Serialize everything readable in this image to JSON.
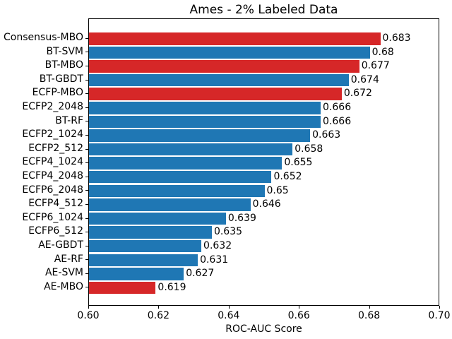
{
  "title": "Ames - 2% Labeled Data",
  "chart_data": {
    "type": "bar",
    "orientation": "horizontal",
    "title": "Ames - 2% Labeled Data",
    "xlabel": "ROC-AUC Score",
    "ylabel": "",
    "xlim": [
      0.6,
      0.7
    ],
    "xticks": [
      {
        "value": 0.6,
        "label": "0.60"
      },
      {
        "value": 0.62,
        "label": "0.62"
      },
      {
        "value": 0.64,
        "label": "0.64"
      },
      {
        "value": 0.66,
        "label": "0.66"
      },
      {
        "value": 0.68,
        "label": "0.68"
      },
      {
        "value": 0.7,
        "label": "0.70"
      }
    ],
    "grid": false,
    "legend": null,
    "colors": {
      "highlight": "#d62728",
      "default": "#1f77b4",
      "spine": "#000000",
      "text": "#000000"
    },
    "bars": [
      {
        "label": "Consensus-MBO",
        "value": 0.683,
        "value_label": "0.683",
        "color": "highlight"
      },
      {
        "label": "BT-SVM",
        "value": 0.68,
        "value_label": "0.68",
        "color": "default"
      },
      {
        "label": "BT-MBO",
        "value": 0.677,
        "value_label": "0.677",
        "color": "highlight"
      },
      {
        "label": "BT-GBDT",
        "value": 0.674,
        "value_label": "0.674",
        "color": "default"
      },
      {
        "label": "ECFP-MBO",
        "value": 0.672,
        "value_label": "0.672",
        "color": "highlight"
      },
      {
        "label": "ECFP2_2048",
        "value": 0.666,
        "value_label": "0.666",
        "color": "default"
      },
      {
        "label": "BT-RF",
        "value": 0.666,
        "value_label": "0.666",
        "color": "default"
      },
      {
        "label": "ECFP2_1024",
        "value": 0.663,
        "value_label": "0.663",
        "color": "default"
      },
      {
        "label": "ECFP2_512",
        "value": 0.658,
        "value_label": "0.658",
        "color": "default"
      },
      {
        "label": "ECFP4_1024",
        "value": 0.655,
        "value_label": "0.655",
        "color": "default"
      },
      {
        "label": "ECFP4_2048",
        "value": 0.652,
        "value_label": "0.652",
        "color": "default"
      },
      {
        "label": "ECFP6_2048",
        "value": 0.65,
        "value_label": "0.65",
        "color": "default"
      },
      {
        "label": "ECFP4_512",
        "value": 0.646,
        "value_label": "0.646",
        "color": "default"
      },
      {
        "label": "ECFP6_1024",
        "value": 0.639,
        "value_label": "0.639",
        "color": "default"
      },
      {
        "label": "ECFP6_512",
        "value": 0.635,
        "value_label": "0.635",
        "color": "default"
      },
      {
        "label": "AE-GBDT",
        "value": 0.632,
        "value_label": "0.632",
        "color": "default"
      },
      {
        "label": "AE-RF",
        "value": 0.631,
        "value_label": "0.631",
        "color": "default"
      },
      {
        "label": "AE-SVM",
        "value": 0.627,
        "value_label": "0.627",
        "color": "default"
      },
      {
        "label": "AE-MBO",
        "value": 0.619,
        "value_label": "0.619",
        "color": "highlight"
      }
    ]
  }
}
